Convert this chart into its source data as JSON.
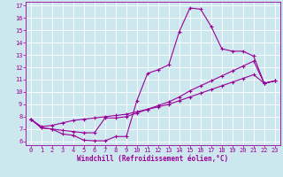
{
  "xlabel": "Windchill (Refroidissement éolien,°C)",
  "bg_color": "#cce8ee",
  "line_color": "#990099",
  "grid_color": "#ffffff",
  "xlim": [
    -0.5,
    23.5
  ],
  "ylim": [
    5.7,
    17.3
  ],
  "xticks": [
    0,
    1,
    2,
    3,
    4,
    5,
    6,
    7,
    8,
    9,
    10,
    11,
    12,
    13,
    14,
    15,
    16,
    17,
    18,
    19,
    20,
    21,
    22,
    23
  ],
  "yticks": [
    6,
    7,
    8,
    9,
    10,
    11,
    12,
    13,
    14,
    15,
    16,
    17
  ],
  "line1_x": [
    0,
    1,
    2,
    3,
    4,
    5,
    6,
    7,
    8,
    9,
    10,
    11,
    12,
    13,
    14,
    15,
    16,
    17,
    18,
    19,
    20,
    21,
    22,
    23
  ],
  "line1_y": [
    7.8,
    7.1,
    7.0,
    6.6,
    6.5,
    6.1,
    6.05,
    6.05,
    6.4,
    6.4,
    9.3,
    11.5,
    11.8,
    12.2,
    14.9,
    16.8,
    16.7,
    15.3,
    13.5,
    13.3,
    13.3,
    12.9,
    10.7,
    10.9
  ],
  "line2_x": [
    0,
    1,
    2,
    3,
    4,
    5,
    6,
    7,
    8,
    9,
    10,
    11,
    12,
    13,
    14,
    15,
    16,
    17,
    18,
    19,
    20,
    21,
    22,
    23
  ],
  "line2_y": [
    7.8,
    7.1,
    7.0,
    6.9,
    6.8,
    6.7,
    6.7,
    7.9,
    7.9,
    8.0,
    8.3,
    8.6,
    8.9,
    9.2,
    9.6,
    10.1,
    10.5,
    10.9,
    11.3,
    11.7,
    12.1,
    12.5,
    10.7,
    10.9
  ],
  "line3_x": [
    0,
    1,
    2,
    3,
    4,
    5,
    6,
    7,
    8,
    9,
    10,
    11,
    12,
    13,
    14,
    15,
    16,
    17,
    18,
    19,
    20,
    21,
    22,
    23
  ],
  "line3_y": [
    7.8,
    7.2,
    7.3,
    7.5,
    7.7,
    7.8,
    7.9,
    8.0,
    8.1,
    8.2,
    8.4,
    8.6,
    8.8,
    9.0,
    9.3,
    9.6,
    9.9,
    10.2,
    10.5,
    10.8,
    11.1,
    11.4,
    10.7,
    10.9
  ],
  "marker": "+",
  "markersize": 3,
  "linewidth": 0.8,
  "tick_fontsize": 5,
  "xlabel_fontsize": 5.5
}
